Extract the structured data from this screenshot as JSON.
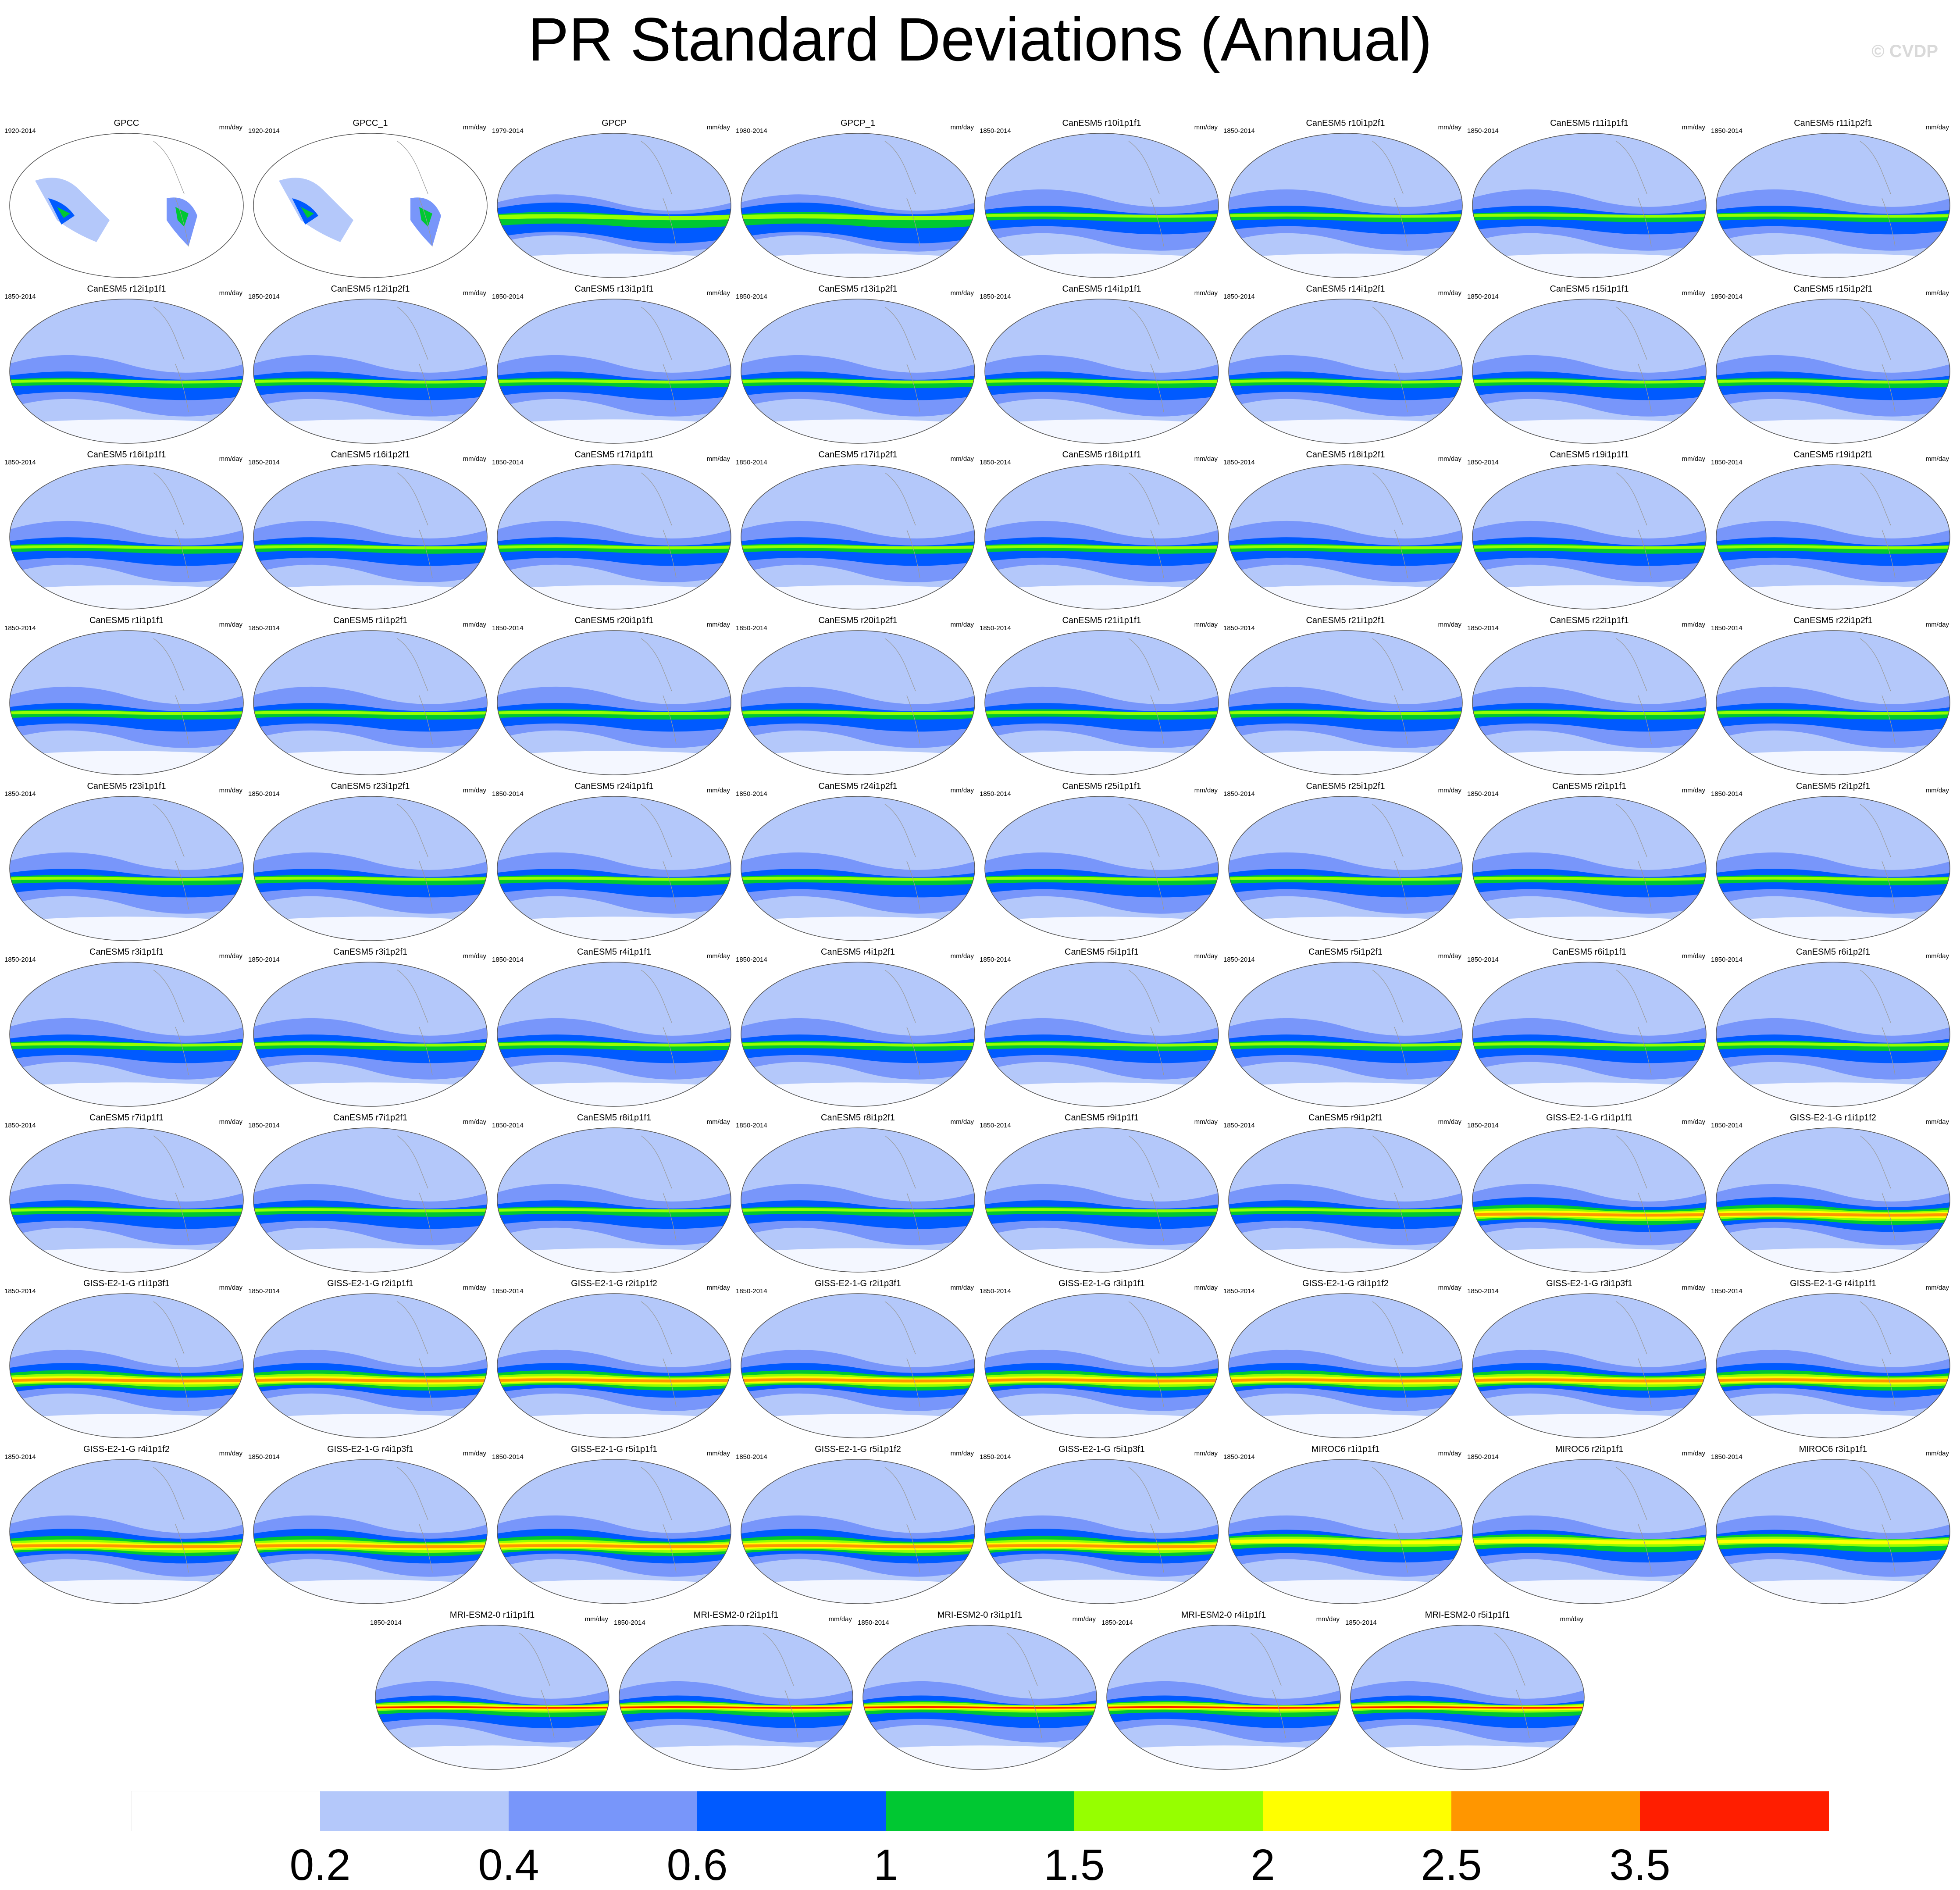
{
  "title": "PR Standard Deviations (Annual)",
  "watermark": "© CVDP",
  "units": "mm/day",
  "colorbar": {
    "colors": [
      "#ffffff",
      "#b4c8fa",
      "#7896fa",
      "#005aff",
      "#00c832",
      "#96ff00",
      "#ffff00",
      "#ff9600",
      "#ff1e00"
    ],
    "labels": [
      "0.2",
      "0.4",
      "0.6",
      "1",
      "1.5",
      "2",
      "2.5",
      "3.5"
    ]
  },
  "panels": [
    {
      "title": "GPCC",
      "period": "1920-2014",
      "style": "land"
    },
    {
      "title": "GPCC_1",
      "period": "1920-2014",
      "style": "land"
    },
    {
      "title": "GPCP",
      "period": "1979-2014",
      "style": "obs"
    },
    {
      "title": "GPCP_1",
      "period": "1980-2014",
      "style": "obs"
    },
    {
      "title": "CanESM5 r10i1p1f1",
      "period": "1850-2014",
      "style": "canesm"
    },
    {
      "title": "CanESM5 r10i1p2f1",
      "period": "1850-2014",
      "style": "canesm"
    },
    {
      "title": "CanESM5 r11i1p1f1",
      "period": "1850-2014",
      "style": "canesm"
    },
    {
      "title": "CanESM5 r11i1p2f1",
      "period": "1850-2014",
      "style": "canesm"
    },
    {
      "title": "CanESM5 r12i1p1f1",
      "period": "1850-2014",
      "style": "canesm"
    },
    {
      "title": "CanESM5 r12i1p2f1",
      "period": "1850-2014",
      "style": "canesm"
    },
    {
      "title": "CanESM5 r13i1p1f1",
      "period": "1850-2014",
      "style": "canesm"
    },
    {
      "title": "CanESM5 r13i1p2f1",
      "period": "1850-2014",
      "style": "canesm"
    },
    {
      "title": "CanESM5 r14i1p1f1",
      "period": "1850-2014",
      "style": "canesm"
    },
    {
      "title": "CanESM5 r14i1p2f1",
      "period": "1850-2014",
      "style": "canesm"
    },
    {
      "title": "CanESM5 r15i1p1f1",
      "period": "1850-2014",
      "style": "canesm"
    },
    {
      "title": "CanESM5 r15i1p2f1",
      "period": "1850-2014",
      "style": "canesm"
    },
    {
      "title": "CanESM5 r16i1p1f1",
      "period": "1850-2014",
      "style": "canesm"
    },
    {
      "title": "CanESM5 r16i1p2f1",
      "period": "1850-2014",
      "style": "canesm"
    },
    {
      "title": "CanESM5 r17i1p1f1",
      "period": "1850-2014",
      "style": "canesm"
    },
    {
      "title": "CanESM5 r17i1p2f1",
      "period": "1850-2014",
      "style": "canesm"
    },
    {
      "title": "CanESM5 r18i1p1f1",
      "period": "1850-2014",
      "style": "canesm"
    },
    {
      "title": "CanESM5 r18i1p2f1",
      "period": "1850-2014",
      "style": "canesm"
    },
    {
      "title": "CanESM5 r19i1p1f1",
      "period": "1850-2014",
      "style": "canesm"
    },
    {
      "title": "CanESM5 r19i1p2f1",
      "period": "1850-2014",
      "style": "canesm"
    },
    {
      "title": "CanESM5 r1i1p1f1",
      "period": "1850-2014",
      "style": "canesm"
    },
    {
      "title": "CanESM5 r1i1p2f1",
      "period": "1850-2014",
      "style": "canesm"
    },
    {
      "title": "CanESM5 r20i1p1f1",
      "period": "1850-2014",
      "style": "canesm"
    },
    {
      "title": "CanESM5 r20i1p2f1",
      "period": "1850-2014",
      "style": "canesm"
    },
    {
      "title": "CanESM5 r21i1p1f1",
      "period": "1850-2014",
      "style": "canesm"
    },
    {
      "title": "CanESM5 r21i1p2f1",
      "period": "1850-2014",
      "style": "canesm"
    },
    {
      "title": "CanESM5 r22i1p1f1",
      "period": "1850-2014",
      "style": "canesm"
    },
    {
      "title": "CanESM5 r22i1p2f1",
      "period": "1850-2014",
      "style": "canesm"
    },
    {
      "title": "CanESM5 r23i1p1f1",
      "period": "1850-2014",
      "style": "canesm"
    },
    {
      "title": "CanESM5 r23i1p2f1",
      "period": "1850-2014",
      "style": "canesm"
    },
    {
      "title": "CanESM5 r24i1p1f1",
      "period": "1850-2014",
      "style": "canesm"
    },
    {
      "title": "CanESM5 r24i1p2f1",
      "period": "1850-2014",
      "style": "canesm"
    },
    {
      "title": "CanESM5 r25i1p1f1",
      "period": "1850-2014",
      "style": "canesm"
    },
    {
      "title": "CanESM5 r25i1p2f1",
      "period": "1850-2014",
      "style": "canesm"
    },
    {
      "title": "CanESM5 r2i1p1f1",
      "period": "1850-2014",
      "style": "canesm"
    },
    {
      "title": "CanESM5 r2i1p2f1",
      "period": "1850-2014",
      "style": "canesm"
    },
    {
      "title": "CanESM5 r3i1p1f1",
      "period": "1850-2014",
      "style": "canesm"
    },
    {
      "title": "CanESM5 r3i1p2f1",
      "period": "1850-2014",
      "style": "canesm"
    },
    {
      "title": "CanESM5 r4i1p1f1",
      "period": "1850-2014",
      "style": "canesm"
    },
    {
      "title": "CanESM5 r4i1p2f1",
      "period": "1850-2014",
      "style": "canesm"
    },
    {
      "title": "CanESM5 r5i1p1f1",
      "period": "1850-2014",
      "style": "canesm"
    },
    {
      "title": "CanESM5 r5i1p2f1",
      "period": "1850-2014",
      "style": "canesm"
    },
    {
      "title": "CanESM5 r6i1p1f1",
      "period": "1850-2014",
      "style": "canesm"
    },
    {
      "title": "CanESM5 r6i1p2f1",
      "period": "1850-2014",
      "style": "canesm"
    },
    {
      "title": "CanESM5 r7i1p1f1",
      "period": "1850-2014",
      "style": "canesm"
    },
    {
      "title": "CanESM5 r7i1p2f1",
      "period": "1850-2014",
      "style": "canesm"
    },
    {
      "title": "CanESM5 r8i1p1f1",
      "period": "1850-2014",
      "style": "canesm"
    },
    {
      "title": "CanESM5 r8i1p2f1",
      "period": "1850-2014",
      "style": "canesm"
    },
    {
      "title": "CanESM5 r9i1p1f1",
      "period": "1850-2014",
      "style": "canesm"
    },
    {
      "title": "CanESM5 r9i1p2f1",
      "period": "1850-2014",
      "style": "canesm"
    },
    {
      "title": "GISS-E2-1-G r1i1p1f1",
      "period": "1850-2014",
      "style": "giss"
    },
    {
      "title": "GISS-E2-1-G r1i1p1f2",
      "period": "1850-2014",
      "style": "giss"
    },
    {
      "title": "GISS-E2-1-G r1i1p3f1",
      "period": "1850-2014",
      "style": "giss"
    },
    {
      "title": "GISS-E2-1-G r2i1p1f1",
      "period": "1850-2014",
      "style": "giss"
    },
    {
      "title": "GISS-E2-1-G r2i1p1f2",
      "period": "1850-2014",
      "style": "giss"
    },
    {
      "title": "GISS-E2-1-G r2i1p3f1",
      "period": "1850-2014",
      "style": "giss"
    },
    {
      "title": "GISS-E2-1-G r3i1p1f1",
      "period": "1850-2014",
      "style": "giss"
    },
    {
      "title": "GISS-E2-1-G r3i1p1f2",
      "period": "1850-2014",
      "style": "giss"
    },
    {
      "title": "GISS-E2-1-G r3i1p3f1",
      "period": "1850-2014",
      "style": "giss"
    },
    {
      "title": "GISS-E2-1-G r4i1p1f1",
      "period": "1850-2014",
      "style": "giss"
    },
    {
      "title": "GISS-E2-1-G r4i1p1f2",
      "period": "1850-2014",
      "style": "giss"
    },
    {
      "title": "GISS-E2-1-G r4i1p3f1",
      "period": "1850-2014",
      "style": "giss"
    },
    {
      "title": "GISS-E2-1-G r5i1p1f1",
      "period": "1850-2014",
      "style": "giss"
    },
    {
      "title": "GISS-E2-1-G r5i1p1f2",
      "period": "1850-2014",
      "style": "giss"
    },
    {
      "title": "GISS-E2-1-G r5i1p3f1",
      "period": "1850-2014",
      "style": "giss"
    },
    {
      "title": "MIROC6 r1i1p1f1",
      "period": "1850-2014",
      "style": "miroc"
    },
    {
      "title": "MIROC6 r2i1p1f1",
      "period": "1850-2014",
      "style": "miroc"
    },
    {
      "title": "MIROC6 r3i1p1f1",
      "period": "1850-2014",
      "style": "miroc"
    },
    {
      "title": "MRI-ESM2-0 r1i1p1f1",
      "period": "1850-2014",
      "style": "mri"
    },
    {
      "title": "MRI-ESM2-0 r2i1p1f1",
      "period": "1850-2014",
      "style": "mri"
    },
    {
      "title": "MRI-ESM2-0 r3i1p1f1",
      "period": "1850-2014",
      "style": "mri"
    },
    {
      "title": "MRI-ESM2-0 r4i1p1f1",
      "period": "1850-2014",
      "style": "mri"
    },
    {
      "title": "MRI-ESM2-0 r5i1p1f1",
      "period": "1850-2014",
      "style": "mri"
    }
  ]
}
